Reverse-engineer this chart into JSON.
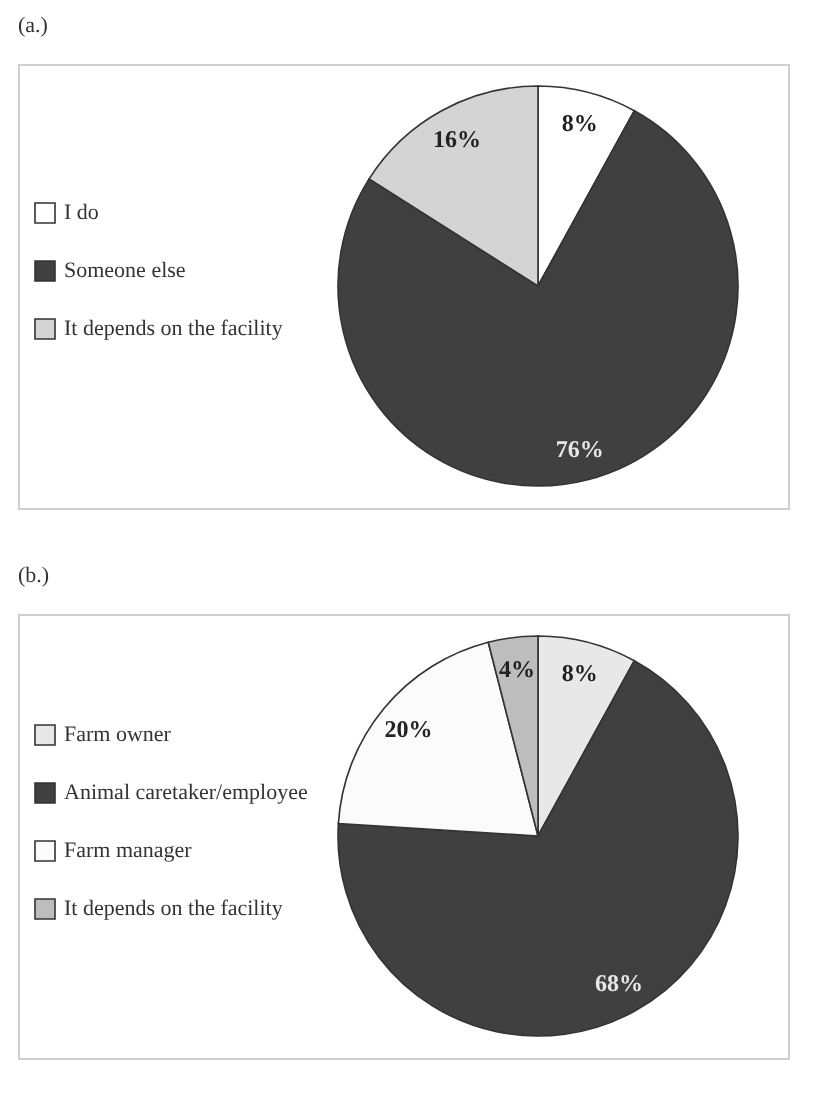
{
  "chart_data": [
    {
      "type": "pie",
      "title": "(a.)",
      "categories": [
        "I do",
        "Someone else",
        "It depends on the facility"
      ],
      "values": [
        8,
        76,
        16
      ],
      "value_labels": [
        "8%",
        "76%",
        "16%"
      ],
      "colors": [
        "#ffffff",
        "#404040",
        "#d4d4d4"
      ],
      "legend": "left"
    },
    {
      "type": "pie",
      "title": "(b.)",
      "categories": [
        "Farm owner",
        "Animal caretaker/employee",
        "Farm manager",
        "It depends on the facility"
      ],
      "values": [
        8,
        68,
        20,
        4
      ],
      "value_labels": [
        "8%",
        "68%",
        "20%",
        "4%"
      ],
      "colors": [
        "#e8e8e8",
        "#404040",
        "#fbfbfb",
        "#bdbdbd"
      ],
      "legend": "left"
    }
  ]
}
